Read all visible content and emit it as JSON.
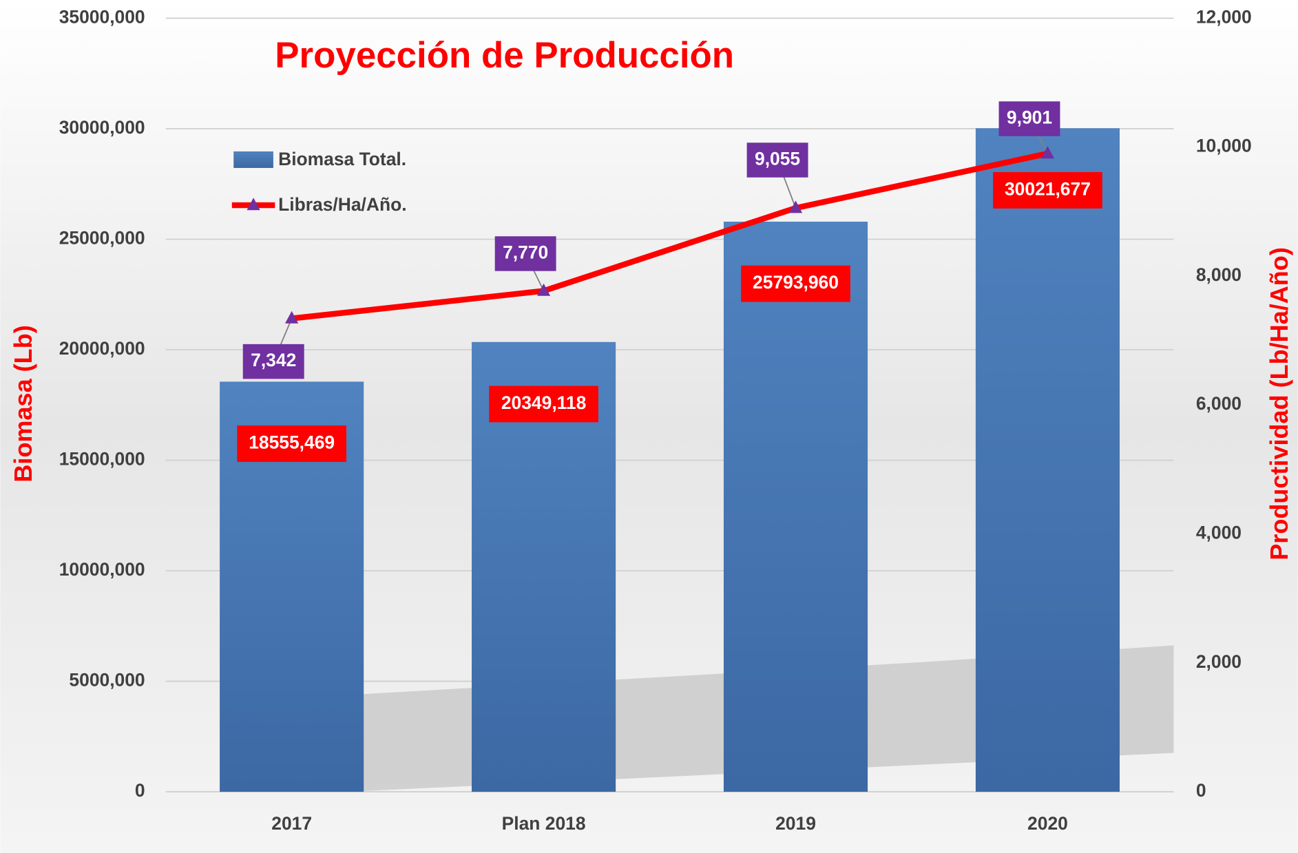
{
  "chart_data": {
    "type": "bar_line",
    "title": "Proyección de Producción",
    "y_label": "Biomasa  (Lb)",
    "y2_label": "Productividad (Lb/Ha/Año)",
    "categories": [
      "2017",
      "Plan 2018",
      "2019",
      "2020"
    ],
    "series": [
      {
        "name": "Biomasa Total.",
        "type": "bar",
        "color": "#4a7ab8",
        "values": [
          18555469,
          20349118,
          25793960,
          30021677
        ],
        "value_labels": [
          "18555,469",
          "20349,118",
          "25793,960",
          "30021,677"
        ]
      },
      {
        "name": "Libras/Ha/Año.",
        "type": "line",
        "axis": "y2",
        "color": "#ff0000",
        "marker_color": "#7030a0",
        "values": [
          7342,
          7770,
          9055,
          9901
        ],
        "value_labels": [
          "7,342",
          "7,770",
          "9,055",
          "9,901"
        ]
      }
    ],
    "ylim": [
      0,
      35000000
    ],
    "yticks": [
      0,
      {
        "value": 5000000,
        "label": "5000,000"
      },
      {
        "value": 10000000,
        "label": "10000,000"
      },
      {
        "value": 15000000,
        "label": "15000,000"
      },
      {
        "value": 20000000,
        "label": "20000,000"
      },
      {
        "value": 25000000,
        "label": "25000,000"
      },
      {
        "value": 30000000,
        "label": "30000,000"
      },
      {
        "value": 35000000,
        "label": "35000,000"
      }
    ],
    "y2lim": [
      0,
      12000
    ],
    "y2ticks": [
      0,
      {
        "value": 2000,
        "label": "2,000"
      },
      {
        "value": 4000,
        "label": "4,000"
      },
      {
        "value": 6000,
        "label": "6,000"
      },
      {
        "value": 8000,
        "label": "8,000"
      },
      {
        "value": 10000,
        "label": "10,000"
      },
      {
        "value": 12000,
        "label": "12,000"
      }
    ],
    "grid": true,
    "legend": "top-left"
  }
}
